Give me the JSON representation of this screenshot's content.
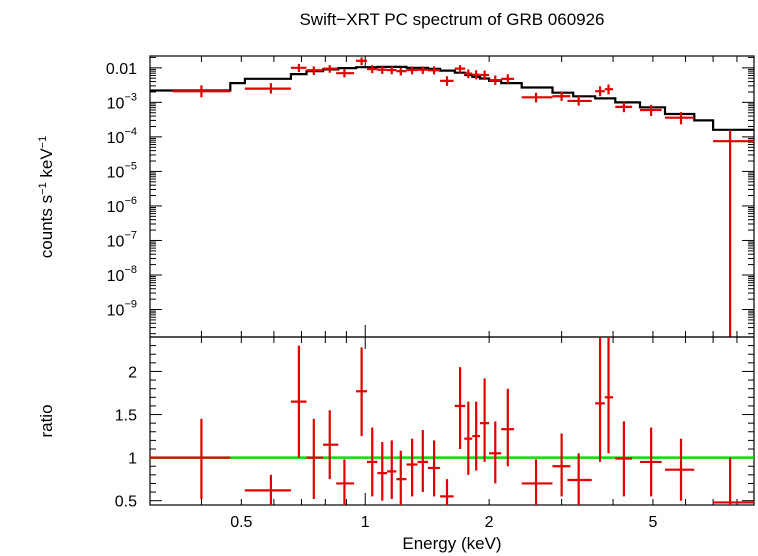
{
  "chart_data": [
    {
      "type": "scatter",
      "panel": "spectrum",
      "title": "Swift−XRT PC spectrum of GRB 060926",
      "ylabel_main": "counts s",
      "ylabel_exp1": "−1",
      "ylabel_mid": " keV",
      "ylabel_exp2": "−1",
      "xscale": "log",
      "yscale": "log",
      "xlim": [
        0.3,
        8.8
      ],
      "ylim": [
        1.6e-10,
        0.022
      ],
      "y_ticks": [
        {
          "value": 0.01,
          "label": "0.01",
          "exp": ""
        },
        {
          "value": 0.001,
          "label": "10",
          "exp": "−3"
        },
        {
          "value": 0.0001,
          "label": "10",
          "exp": "−4"
        },
        {
          "value": 1e-05,
          "label": "10",
          "exp": "−5"
        },
        {
          "value": 1e-06,
          "label": "10",
          "exp": "−6"
        },
        {
          "value": 1e-07,
          "label": "10",
          "exp": "−7"
        },
        {
          "value": 1e-08,
          "label": "10",
          "exp": "−8"
        },
        {
          "value": 1e-09,
          "label": "10",
          "exp": "−9"
        }
      ],
      "data_color": "#e00000",
      "model_color": "#000000",
      "points": [
        {
          "x": 0.4,
          "xl": 0.34,
          "xh": 0.47,
          "y": 0.0021,
          "yl": 0.0014,
          "yh": 0.0031
        },
        {
          "x": 0.59,
          "xl": 0.51,
          "xh": 0.66,
          "y": 0.0025,
          "yl": 0.0018,
          "yh": 0.0036
        },
        {
          "x": 0.69,
          "xl": 0.66,
          "xh": 0.72,
          "y": 0.01,
          "yl": 0.0075,
          "yh": 0.013
        },
        {
          "x": 0.75,
          "xl": 0.72,
          "xh": 0.79,
          "y": 0.0085,
          "yl": 0.0062,
          "yh": 0.011
        },
        {
          "x": 0.82,
          "xl": 0.79,
          "xh": 0.86,
          "y": 0.0095,
          "yl": 0.0072,
          "yh": 0.012
        },
        {
          "x": 0.89,
          "xl": 0.85,
          "xh": 0.94,
          "y": 0.007,
          "yl": 0.0053,
          "yh": 0.0092
        },
        {
          "x": 0.98,
          "xl": 0.95,
          "xh": 1.01,
          "y": 0.016,
          "yl": 0.012,
          "yh": 0.02
        },
        {
          "x": 1.04,
          "xl": 1.01,
          "xh": 1.07,
          "y": 0.0092,
          "yl": 0.007,
          "yh": 0.012
        },
        {
          "x": 1.1,
          "xl": 1.07,
          "xh": 1.13,
          "y": 0.0088,
          "yl": 0.0067,
          "yh": 0.011
        },
        {
          "x": 1.16,
          "xl": 1.13,
          "xh": 1.19,
          "y": 0.0086,
          "yl": 0.0065,
          "yh": 0.011
        },
        {
          "x": 1.22,
          "xl": 1.19,
          "xh": 1.26,
          "y": 0.008,
          "yl": 0.006,
          "yh": 0.01
        },
        {
          "x": 1.3,
          "xl": 1.26,
          "xh": 1.34,
          "y": 0.0086,
          "yl": 0.0065,
          "yh": 0.011
        },
        {
          "x": 1.38,
          "xl": 1.34,
          "xh": 1.42,
          "y": 0.0088,
          "yl": 0.0067,
          "yh": 0.011
        },
        {
          "x": 1.47,
          "xl": 1.42,
          "xh": 1.52,
          "y": 0.0085,
          "yl": 0.0064,
          "yh": 0.011
        },
        {
          "x": 1.58,
          "xl": 1.52,
          "xh": 1.64,
          "y": 0.0042,
          "yl": 0.003,
          "yh": 0.0057
        },
        {
          "x": 1.7,
          "xl": 1.65,
          "xh": 1.75,
          "y": 0.0095,
          "yl": 0.0072,
          "yh": 0.012
        },
        {
          "x": 1.78,
          "xl": 1.74,
          "xh": 1.82,
          "y": 0.0068,
          "yl": 0.005,
          "yh": 0.009
        },
        {
          "x": 1.86,
          "xl": 1.82,
          "xh": 1.9,
          "y": 0.0063,
          "yl": 0.0046,
          "yh": 0.0085
        },
        {
          "x": 1.95,
          "xl": 1.9,
          "xh": 2.0,
          "y": 0.0062,
          "yl": 0.0045,
          "yh": 0.0083
        },
        {
          "x": 2.07,
          "xl": 2.0,
          "xh": 2.14,
          "y": 0.0044,
          "yl": 0.0032,
          "yh": 0.006
        },
        {
          "x": 2.22,
          "xl": 2.14,
          "xh": 2.3,
          "y": 0.0048,
          "yl": 0.0035,
          "yh": 0.0065
        },
        {
          "x": 2.6,
          "xl": 2.4,
          "xh": 2.85,
          "y": 0.0014,
          "yl": 0.001,
          "yh": 0.0019
        },
        {
          "x": 3.0,
          "xl": 2.85,
          "xh": 3.15,
          "y": 0.0015,
          "yl": 0.0011,
          "yh": 0.002
        },
        {
          "x": 3.3,
          "xl": 3.1,
          "xh": 3.55,
          "y": 0.0011,
          "yl": 0.0008,
          "yh": 0.0015
        },
        {
          "x": 3.72,
          "xl": 3.62,
          "xh": 3.82,
          "y": 0.0021,
          "yl": 0.0015,
          "yh": 0.0029
        },
        {
          "x": 3.9,
          "xl": 3.82,
          "xh": 4.0,
          "y": 0.0024,
          "yl": 0.0017,
          "yh": 0.0033
        },
        {
          "x": 4.25,
          "xl": 4.05,
          "xh": 4.45,
          "y": 0.00074,
          "yl": 0.00052,
          "yh": 0.001
        },
        {
          "x": 4.95,
          "xl": 4.65,
          "xh": 5.25,
          "y": 0.0006,
          "yl": 0.0004,
          "yh": 0.00085
        },
        {
          "x": 5.85,
          "xl": 5.35,
          "xh": 6.3,
          "y": 0.00036,
          "yl": 0.00023,
          "yh": 0.00052
        },
        {
          "x": 7.7,
          "xl": 7.0,
          "xh": 8.8,
          "y": 7.5e-05,
          "yl": 1.6e-10,
          "yh": 0.00016
        }
      ],
      "model_steps": [
        {
          "x0": 0.3,
          "x1": 0.47,
          "y": 0.0022
        },
        {
          "x0": 0.47,
          "x1": 0.51,
          "y": 0.0036
        },
        {
          "x0": 0.51,
          "x1": 0.66,
          "y": 0.0048
        },
        {
          "x0": 0.66,
          "x1": 0.72,
          "y": 0.0066
        },
        {
          "x0": 0.72,
          "x1": 0.79,
          "y": 0.008
        },
        {
          "x0": 0.79,
          "x1": 0.86,
          "y": 0.009
        },
        {
          "x0": 0.86,
          "x1": 0.95,
          "y": 0.0098
        },
        {
          "x0": 0.95,
          "x1": 1.07,
          "y": 0.0104
        },
        {
          "x0": 1.07,
          "x1": 1.26,
          "y": 0.0106
        },
        {
          "x0": 1.26,
          "x1": 1.42,
          "y": 0.01
        },
        {
          "x0": 1.42,
          "x1": 1.52,
          "y": 0.0093
        },
        {
          "x0": 1.52,
          "x1": 1.65,
          "y": 0.0083
        },
        {
          "x0": 1.65,
          "x1": 1.75,
          "y": 0.0072
        },
        {
          "x0": 1.75,
          "x1": 1.82,
          "y": 0.0062
        },
        {
          "x0": 1.82,
          "x1": 1.9,
          "y": 0.0055
        },
        {
          "x0": 1.9,
          "x1": 2.0,
          "y": 0.0049
        },
        {
          "x0": 2.0,
          "x1": 2.14,
          "y": 0.0042
        },
        {
          "x0": 2.14,
          "x1": 2.4,
          "y": 0.0036
        },
        {
          "x0": 2.4,
          "x1": 2.85,
          "y": 0.0027
        },
        {
          "x0": 2.85,
          "x1": 3.2,
          "y": 0.0019
        },
        {
          "x0": 3.2,
          "x1": 3.62,
          "y": 0.0015
        },
        {
          "x0": 3.62,
          "x1": 4.05,
          "y": 0.0013
        },
        {
          "x0": 4.05,
          "x1": 4.65,
          "y": 0.001
        },
        {
          "x0": 4.65,
          "x1": 5.35,
          "y": 0.00072
        },
        {
          "x0": 5.35,
          "x1": 6.3,
          "y": 0.00046
        },
        {
          "x0": 6.3,
          "x1": 7.0,
          "y": 0.0003
        },
        {
          "x0": 7.0,
          "x1": 8.8,
          "y": 0.00016
        }
      ]
    },
    {
      "type": "scatter",
      "panel": "ratio",
      "ylabel": "ratio",
      "xlabel": "Energy (keV)",
      "xscale": "log",
      "xlim": [
        0.3,
        8.8
      ],
      "ylim": [
        0.45,
        2.4
      ],
      "x_ticks": [
        {
          "value": 0.5,
          "label": "0.5"
        },
        {
          "value": 1,
          "label": "1"
        },
        {
          "value": 2,
          "label": "2"
        },
        {
          "value": 5,
          "label": "5"
        }
      ],
      "y_ticks": [
        {
          "value": 0.5,
          "label": "0.5"
        },
        {
          "value": 1,
          "label": "1"
        },
        {
          "value": 1.5,
          "label": "1.5"
        },
        {
          "value": 2,
          "label": "2"
        }
      ],
      "reference_value": 1,
      "reference_color": "#00e000",
      "data_color": "#e00000",
      "points": [
        {
          "x": 0.4,
          "xl": 0.3,
          "xh": 0.47,
          "y": 1.0,
          "yl": 0.52,
          "yh": 1.45
        },
        {
          "x": 0.59,
          "xl": 0.51,
          "xh": 0.66,
          "y": 0.62,
          "yl": 0.45,
          "yh": 0.8
        },
        {
          "x": 0.69,
          "xl": 0.66,
          "xh": 0.72,
          "y": 1.65,
          "yl": 1.0,
          "yh": 2.3
        },
        {
          "x": 0.75,
          "xl": 0.72,
          "xh": 0.79,
          "y": 1.0,
          "yl": 0.52,
          "yh": 1.45
        },
        {
          "x": 0.82,
          "xl": 0.79,
          "xh": 0.86,
          "y": 1.15,
          "yl": 0.75,
          "yh": 1.55
        },
        {
          "x": 0.89,
          "xl": 0.85,
          "xh": 0.94,
          "y": 0.7,
          "yl": 0.45,
          "yh": 0.98
        },
        {
          "x": 0.98,
          "xl": 0.95,
          "xh": 1.01,
          "y": 1.77,
          "yl": 1.25,
          "yh": 2.28
        },
        {
          "x": 1.04,
          "xl": 1.01,
          "xh": 1.07,
          "y": 0.95,
          "yl": 0.55,
          "yh": 1.35
        },
        {
          "x": 1.1,
          "xl": 1.07,
          "xh": 1.13,
          "y": 0.82,
          "yl": 0.5,
          "yh": 1.18
        },
        {
          "x": 1.16,
          "xl": 1.13,
          "xh": 1.19,
          "y": 0.84,
          "yl": 0.52,
          "yh": 1.2
        },
        {
          "x": 1.22,
          "xl": 1.19,
          "xh": 1.26,
          "y": 0.75,
          "yl": 0.45,
          "yh": 1.08
        },
        {
          "x": 1.3,
          "xl": 1.26,
          "xh": 1.34,
          "y": 0.92,
          "yl": 0.55,
          "yh": 1.22
        },
        {
          "x": 1.38,
          "xl": 1.34,
          "xh": 1.42,
          "y": 0.95,
          "yl": 0.6,
          "yh": 1.32
        },
        {
          "x": 1.47,
          "xl": 1.42,
          "xh": 1.52,
          "y": 0.88,
          "yl": 0.55,
          "yh": 1.2
        },
        {
          "x": 1.58,
          "xl": 1.52,
          "xh": 1.64,
          "y": 0.55,
          "yl": 0.45,
          "yh": 0.75
        },
        {
          "x": 1.7,
          "xl": 1.65,
          "xh": 1.75,
          "y": 1.6,
          "yl": 1.1,
          "yh": 2.05
        },
        {
          "x": 1.78,
          "xl": 1.74,
          "xh": 1.82,
          "y": 1.22,
          "yl": 0.8,
          "yh": 1.65
        },
        {
          "x": 1.86,
          "xl": 1.82,
          "xh": 1.9,
          "y": 1.25,
          "yl": 0.85,
          "yh": 1.65
        },
        {
          "x": 1.95,
          "xl": 1.9,
          "xh": 2.0,
          "y": 1.4,
          "yl": 0.95,
          "yh": 1.92
        },
        {
          "x": 2.07,
          "xl": 2.0,
          "xh": 2.14,
          "y": 1.05,
          "yl": 0.7,
          "yh": 1.42
        },
        {
          "x": 2.22,
          "xl": 2.14,
          "xh": 2.3,
          "y": 1.33,
          "yl": 0.9,
          "yh": 1.8
        },
        {
          "x": 2.6,
          "xl": 2.4,
          "xh": 2.85,
          "y": 0.7,
          "yl": 0.45,
          "yh": 0.98
        },
        {
          "x": 3.0,
          "xl": 2.85,
          "xh": 3.15,
          "y": 0.9,
          "yl": 0.55,
          "yh": 1.28
        },
        {
          "x": 3.3,
          "xl": 3.1,
          "xh": 3.55,
          "y": 0.74,
          "yl": 0.45,
          "yh": 1.05
        },
        {
          "x": 3.72,
          "xl": 3.62,
          "xh": 3.82,
          "y": 1.63,
          "yl": 0.95,
          "yh": 2.4
        },
        {
          "x": 3.9,
          "xl": 3.82,
          "xh": 4.0,
          "y": 1.7,
          "yl": 1.05,
          "yh": 2.4
        },
        {
          "x": 4.25,
          "xl": 4.05,
          "xh": 4.45,
          "y": 0.99,
          "yl": 0.55,
          "yh": 1.42
        },
        {
          "x": 4.95,
          "xl": 4.65,
          "xh": 5.25,
          "y": 0.95,
          "yl": 0.55,
          "yh": 1.35
        },
        {
          "x": 5.85,
          "xl": 5.35,
          "xh": 6.3,
          "y": 0.86,
          "yl": 0.5,
          "yh": 1.22
        },
        {
          "x": 7.7,
          "xl": 7.0,
          "xh": 8.8,
          "y": 0.48,
          "yl": 0.45,
          "yh": 1.0
        }
      ]
    }
  ]
}
